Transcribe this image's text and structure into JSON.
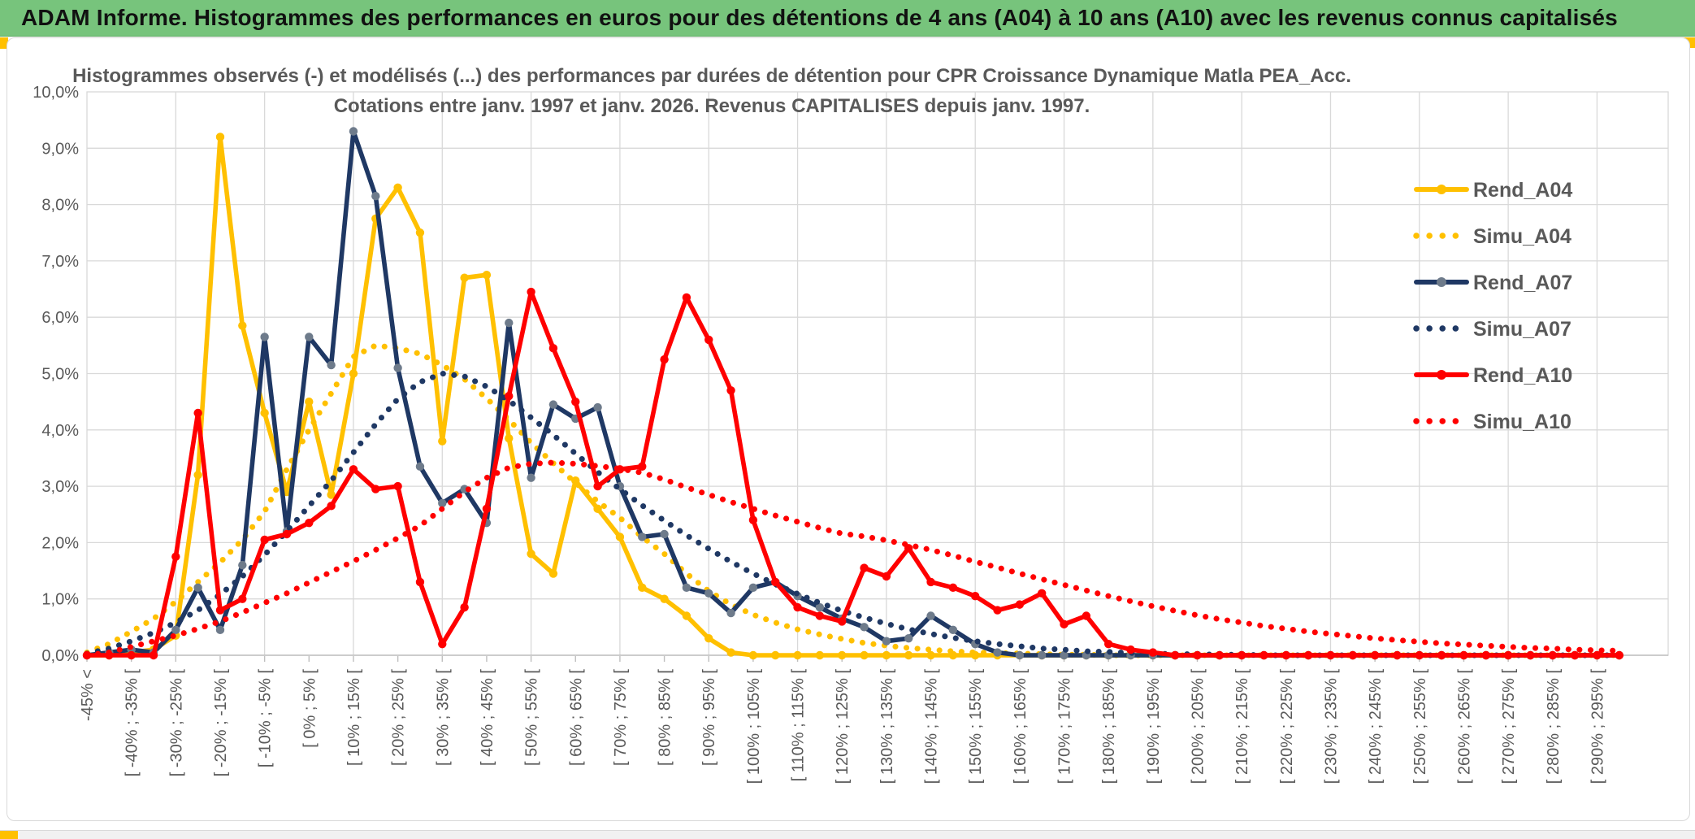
{
  "window": {
    "header_title": "ADAM Informe. Histogrammes des performances en euros pour des détentions de 4 ans (A04) à 10 ans (A10) avec les revenus connus capitalisés",
    "header_bg": "#77c47c",
    "accent_color": "#ffc000"
  },
  "chart_data": {
    "type": "line",
    "title_line1": "Histogrammes observés (-) et modélisés (...) des performances par durées de détention pour CPR Croissance Dynamique Matla PEA_Acc.",
    "title_line2": "Cotations entre janv. 1997 et janv. 2026. Revenus CAPITALISES depuis janv. 1997.",
    "ylim": [
      0,
      10
    ],
    "grid": "on",
    "legend_position": "right",
    "y_tick_labels": [
      "0,0%",
      "1,0%",
      "2,0%",
      "3,0%",
      "4,0%",
      "5,0%",
      "6,0%",
      "7,0%",
      "8,0%",
      "9,0%",
      "10,0%"
    ],
    "categories": [
      "-45% <",
      "",
      "[ -40% ; -35% [",
      "",
      "[ -30% ; -25% [",
      "",
      "[ -20% ; -15% [",
      "",
      "[ -10% ; -5% [",
      "",
      "[ 0% ; 5% [",
      "",
      "[ 10% ; 15% [",
      "",
      "[ 20% ; 25% [",
      "",
      "[ 30% ; 35% [",
      "",
      "[ 40% ; 45% [",
      "",
      "[ 50% ; 55% [",
      "",
      "[ 60% ; 65% [",
      "",
      "[ 70% ; 75% [",
      "",
      "[ 80% ; 85% [",
      "",
      "[ 90% ; 95% [",
      "",
      "[ 100% ; 105% [",
      "",
      "[ 110% ; 115% [",
      "",
      "[ 120% ; 125% [",
      "",
      "[ 130% ; 135% [",
      "",
      "[ 140% ; 145% [",
      "",
      "[ 150% ; 155% [",
      "",
      "[ 160% ; 165% [",
      "",
      "[ 170% ; 175% [",
      "",
      "[ 180% ; 185% [",
      "",
      "[ 190% ; 195% [",
      "",
      "[ 200% ; 205% [",
      "",
      "[ 210% ; 215% [",
      "",
      "[ 220% ; 225% [",
      "",
      "[ 230% ; 235% [",
      "",
      "[ 240% ; 245% [",
      "",
      "[ 250% ; 255% [",
      "",
      "[ 260% ; 265% [",
      "",
      "[ 270% ; 275% [",
      "",
      "[ 280% ; 285% [",
      "",
      "[ 290% ; 295% [",
      ""
    ],
    "series": [
      {
        "name": "Rend_A04",
        "style": "solid",
        "color": "#ffc000",
        "marker_color": "#ffc000",
        "values": [
          0,
          0,
          0.05,
          0.1,
          0.35,
          3.2,
          9.2,
          5.85,
          4.3,
          2.9,
          4.5,
          2.85,
          5.0,
          7.75,
          8.3,
          7.5,
          3.8,
          6.7,
          6.75,
          3.85,
          1.8,
          1.45,
          3.1,
          2.6,
          2.1,
          1.2,
          1.0,
          0.7,
          0.3,
          0.05,
          0,
          0,
          0,
          0,
          0,
          0,
          0,
          0,
          0,
          0,
          0,
          0,
          0,
          0,
          0,
          0,
          0,
          0,
          0,
          0,
          0,
          0,
          0,
          0,
          0,
          0,
          0,
          0,
          0,
          0,
          0,
          0,
          0,
          0,
          0,
          0,
          0,
          0,
          0,
          0
        ]
      },
      {
        "name": "Simu_A04",
        "style": "dotted",
        "color": "#ffc000",
        "values": [
          0.05,
          0.2,
          0.42,
          0.65,
          0.95,
          1.3,
          1.65,
          2.05,
          2.55,
          3.3,
          4.0,
          4.65,
          5.3,
          5.5,
          5.45,
          5.35,
          5.15,
          4.9,
          4.56,
          4.18,
          3.77,
          3.41,
          3.06,
          2.73,
          2.44,
          2.1,
          1.8,
          1.45,
          1.14,
          0.9,
          0.72,
          0.58,
          0.46,
          0.37,
          0.29,
          0.22,
          0.17,
          0.13,
          0.1,
          0.07,
          0.05,
          0.04,
          0.03,
          0.02,
          0.01,
          0.01,
          0,
          0,
          0,
          0,
          0,
          0,
          0,
          0,
          0,
          0,
          0,
          0,
          0,
          0,
          0,
          0,
          0,
          0,
          0,
          0,
          0,
          0,
          0,
          0
        ]
      },
      {
        "name": "Rend_A07",
        "style": "solid",
        "color": "#1f3864",
        "marker_color": "#6e7b8b",
        "values": [
          0,
          0.05,
          0.1,
          0.05,
          0.45,
          1.2,
          0.45,
          1.6,
          5.65,
          2.2,
          5.65,
          5.15,
          9.3,
          8.15,
          5.1,
          3.35,
          2.7,
          2.95,
          2.35,
          5.9,
          3.15,
          4.45,
          4.2,
          4.4,
          3.0,
          2.1,
          2.15,
          1.2,
          1.1,
          0.75,
          1.2,
          1.3,
          1.05,
          0.85,
          0.65,
          0.5,
          0.25,
          0.3,
          0.7,
          0.45,
          0.2,
          0.05,
          0,
          0,
          0,
          0,
          0,
          0,
          0,
          0,
          0,
          0,
          0,
          0,
          0,
          0,
          0,
          0,
          0,
          0,
          0,
          0,
          0,
          0,
          0,
          0,
          0,
          0,
          0,
          0
        ]
      },
      {
        "name": "Simu_A07",
        "style": "dotted",
        "color": "#1f3864",
        "values": [
          0.03,
          0.12,
          0.25,
          0.4,
          0.58,
          0.8,
          1.08,
          1.4,
          1.78,
          2.2,
          2.65,
          3.1,
          3.6,
          4.1,
          4.55,
          4.85,
          5.0,
          4.95,
          4.77,
          4.52,
          4.22,
          3.91,
          3.58,
          3.25,
          2.95,
          2.66,
          2.39,
          2.13,
          1.89,
          1.66,
          1.45,
          1.26,
          1.09,
          0.93,
          0.79,
          0.67,
          0.56,
          0.46,
          0.38,
          0.31,
          0.25,
          0.2,
          0.16,
          0.12,
          0.1,
          0.07,
          0.06,
          0.04,
          0.03,
          0.02,
          0.02,
          0.01,
          0.01,
          0,
          0,
          0,
          0,
          0,
          0,
          0,
          0,
          0,
          0,
          0,
          0,
          0,
          0,
          0,
          0,
          0
        ]
      },
      {
        "name": "Rend_A10",
        "style": "solid",
        "color": "#ff0000",
        "marker_color": "#ff0000",
        "values": [
          0,
          0,
          0,
          0,
          1.75,
          4.3,
          0.8,
          1.0,
          2.05,
          2.15,
          2.35,
          2.65,
          3.3,
          2.95,
          3.0,
          1.3,
          0.2,
          0.85,
          2.6,
          4.6,
          6.45,
          5.45,
          4.5,
          3.0,
          3.3,
          3.35,
          5.25,
          6.35,
          5.6,
          4.7,
          2.4,
          1.3,
          0.85,
          0.7,
          0.6,
          1.55,
          1.4,
          1.9,
          1.3,
          1.2,
          1.05,
          0.8,
          0.9,
          1.1,
          0.55,
          0.7,
          0.2,
          0.1,
          0.05,
          0,
          0,
          0,
          0,
          0,
          0,
          0,
          0,
          0,
          0,
          0,
          0,
          0,
          0,
          0,
          0,
          0,
          0,
          0,
          0,
          0
        ]
      },
      {
        "name": "Simu_A10",
        "style": "dotted",
        "color": "#ff0000",
        "values": [
          0,
          0.05,
          0.15,
          0.25,
          0.35,
          0.47,
          0.6,
          0.76,
          0.93,
          1.1,
          1.29,
          1.48,
          1.67,
          1.87,
          2.08,
          2.3,
          2.6,
          2.9,
          3.15,
          3.33,
          3.4,
          3.42,
          3.4,
          3.36,
          3.31,
          3.24,
          3.12,
          2.98,
          2.85,
          2.72,
          2.6,
          2.48,
          2.37,
          2.26,
          2.16,
          2.11,
          2.04,
          1.96,
          1.87,
          1.77,
          1.66,
          1.56,
          1.45,
          1.35,
          1.25,
          1.15,
          1.05,
          0.96,
          0.87,
          0.79,
          0.71,
          0.64,
          0.58,
          0.52,
          0.47,
          0.42,
          0.38,
          0.34,
          0.3,
          0.27,
          0.24,
          0.21,
          0.19,
          0.17,
          0.15,
          0.13,
          0.12,
          0.1,
          0.09,
          0.08
        ]
      }
    ],
    "style": {
      "grid_color": "#d9d9d9",
      "axis_color": "#bfbfbf",
      "label_color": "#595959",
      "title_color": "#595959"
    }
  }
}
